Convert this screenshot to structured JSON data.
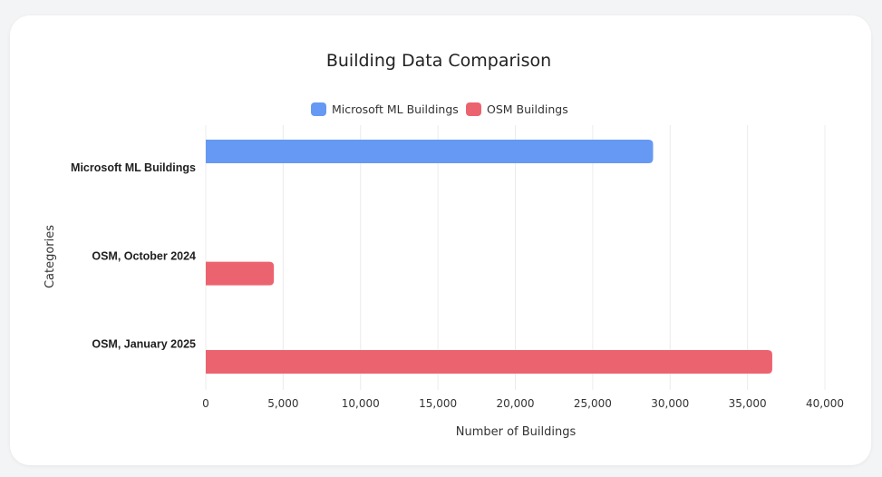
{
  "chart_data": {
    "type": "bar",
    "orientation": "horizontal",
    "title": "Building Data Comparison",
    "xlabel": "Number of Buildings",
    "ylabel": "Categories",
    "categories": [
      "Microsoft ML Buildings",
      "OSM, October 2024",
      "OSM, January 2025"
    ],
    "series": [
      {
        "name": "Microsoft ML Buildings",
        "color": "#6699f3",
        "values": [
          28900,
          null,
          null
        ]
      },
      {
        "name": "OSM Buildings",
        "color": "#ec6370",
        "values": [
          null,
          4400,
          36600
        ]
      }
    ],
    "xlim": [
      0,
      40000
    ],
    "xticks": [
      0,
      5000,
      10000,
      15000,
      20000,
      25000,
      30000,
      35000,
      40000
    ],
    "xtick_labels": [
      "0",
      "5,000",
      "10,000",
      "15,000",
      "20,000",
      "25,000",
      "30,000",
      "35,000",
      "40,000"
    ],
    "grid": true,
    "legend_position": "top"
  }
}
